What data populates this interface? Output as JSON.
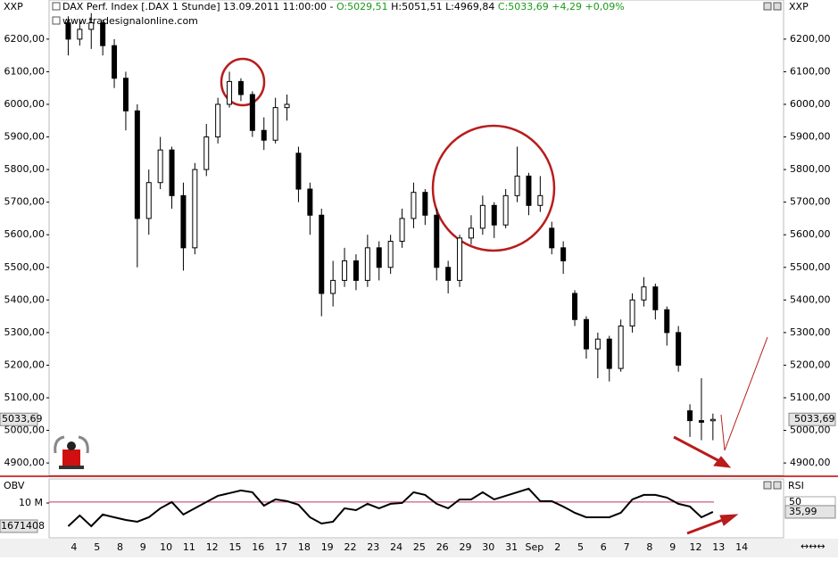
{
  "header": {
    "symbol_left": "XXP",
    "symbol_right": "XXP",
    "title": "DAX Perf. Index [.DAX  1 Stunde] 13.09.2011 11:00:00 -",
    "open_text": "O:5029,51",
    "hl_text": "H:5051,51 L:4969,84",
    "close_text": "C:5033,69 +4,29 +0,09%",
    "watermark": "www.tradesignalonline.com"
  },
  "chart_data": [
    {
      "type": "candlestick",
      "categories": [
        "4",
        null,
        "5",
        null,
        "8",
        null,
        "9",
        null,
        "10",
        null,
        "11",
        null,
        "12",
        null,
        "15",
        null,
        "16",
        null,
        "17",
        null,
        "18",
        null,
        "19",
        null,
        "22",
        null,
        "23",
        null,
        "24",
        null,
        "25",
        null,
        "26",
        null,
        "29",
        null,
        "30",
        null,
        "31",
        null,
        "Sep",
        null,
        "2",
        null,
        "5",
        null,
        "6",
        null,
        "7",
        null,
        "8",
        null,
        "9",
        null,
        "12",
        null,
        "13",
        null,
        "14",
        null
      ],
      "open": [
        6250,
        6200,
        6230,
        6250,
        6180,
        6080,
        5980,
        5650,
        5760,
        5860,
        5720,
        5560,
        5800,
        5900,
        6000,
        6070,
        6030,
        5920,
        5890,
        5990,
        5850,
        5740,
        5660,
        5420,
        5460,
        5520,
        5460,
        5560,
        5500,
        5580,
        5650,
        5730,
        5660,
        5500,
        5460,
        5590,
        5620,
        5690,
        5630,
        5720,
        5780,
        5690,
        5620,
        5560,
        5420,
        5340,
        5250,
        5280,
        5190,
        5320,
        5400,
        5440,
        5370,
        5300,
        5060,
        5030,
        5029.51,
        null,
        null,
        null
      ],
      "high": [
        6270,
        6260,
        6280,
        6260,
        6200,
        6100,
        6000,
        5800,
        5900,
        5870,
        5760,
        5820,
        5940,
        6020,
        6100,
        6080,
        6040,
        5960,
        6020,
        6030,
        5870,
        5760,
        5680,
        5520,
        5560,
        5540,
        5600,
        5580,
        5600,
        5680,
        5760,
        5740,
        5680,
        5520,
        5600,
        5660,
        5720,
        5700,
        5740,
        5870,
        5790,
        5780,
        5640,
        5580,
        5430,
        5350,
        5300,
        5290,
        5340,
        5420,
        5470,
        5450,
        5380,
        5320,
        5080,
        5160,
        5051.51,
        null,
        null,
        null
      ],
      "low": [
        6150,
        6180,
        6170,
        6150,
        6050,
        5920,
        5500,
        5600,
        5740,
        5680,
        5490,
        5540,
        5780,
        5880,
        5990,
        6010,
        5900,
        5860,
        5880,
        5950,
        5700,
        5600,
        5350,
        5380,
        5440,
        5430,
        5440,
        5460,
        5480,
        5560,
        5620,
        5630,
        5460,
        5420,
        5440,
        5570,
        5600,
        5590,
        5620,
        5700,
        5660,
        5670,
        5540,
        5480,
        5320,
        5220,
        5160,
        5150,
        5180,
        5300,
        5380,
        5340,
        5260,
        5180,
        4980,
        4970,
        4969.84,
        null,
        null,
        null
      ],
      "close": [
        6200,
        6230,
        6250,
        6180,
        6080,
        5980,
        5650,
        5760,
        5860,
        5720,
        5560,
        5800,
        5900,
        6000,
        6070,
        6030,
        5920,
        5890,
        5990,
        6000,
        5740,
        5660,
        5420,
        5460,
        5520,
        5460,
        5560,
        5500,
        5580,
        5650,
        5730,
        5660,
        5500,
        5460,
        5590,
        5620,
        5690,
        5630,
        5720,
        5780,
        5690,
        5720,
        5560,
        5520,
        5340,
        5250,
        5280,
        5190,
        5320,
        5400,
        5440,
        5370,
        5300,
        5200,
        5030,
        5025,
        5033.69,
        null,
        null,
        null
      ],
      "ylim": [
        4862,
        6320
      ],
      "yticks": [
        {
          "value": 4900,
          "label": "4900,00"
        },
        {
          "value": 5000,
          "label": "5000,00"
        },
        {
          "value": 5100,
          "label": "5100,00"
        },
        {
          "value": 5200,
          "label": "5200,00"
        },
        {
          "value": 5300,
          "label": "5300,00"
        },
        {
          "value": 5400,
          "label": "5400,00"
        },
        {
          "value": 5500,
          "label": "5500,00"
        },
        {
          "value": 5600,
          "label": "5600,00"
        },
        {
          "value": 5700,
          "label": "5700,00"
        },
        {
          "value": 5800,
          "label": "5800,00"
        },
        {
          "value": 5900,
          "label": "5900,00"
        },
        {
          "value": 6000,
          "label": "6000,00"
        },
        {
          "value": 6100,
          "label": "6100,00"
        },
        {
          "value": 6200,
          "label": "6200,00"
        }
      ],
      "last_value": 5033.69,
      "last_label": "5033,69",
      "color": "#000000"
    },
    {
      "type": "line",
      "ylabel": "OBV",
      "y2label": "RSI",
      "ylim": [
        -2500000,
        18650000
      ],
      "yticks": [
        {
          "value": 10000000,
          "label": "10 M"
        }
      ],
      "last_obv": 1671408,
      "y2lim": [
        -1,
        83
      ],
      "y2ticks": [
        50
      ],
      "grid_color": "#c0306a",
      "color": "#000000",
      "axis": "y2",
      "values": [
        15.6,
        30.9,
        15.6,
        32.2,
        28.3,
        24.5,
        22.0,
        28.3,
        41.1,
        50,
        32.2,
        41.1,
        50,
        58.9,
        62.7,
        66.6,
        64.0,
        44.9,
        53.8,
        51.3,
        46.2,
        28.3,
        19.4,
        22.0,
        41.1,
        38.5,
        47.5,
        41.1,
        47.5,
        48.7,
        64.0,
        60.2,
        47.5,
        41.1,
        53.8,
        53.8,
        64.0,
        53.8,
        58.9,
        64.0,
        69.1,
        51.3,
        51.3,
        43.6,
        34.7,
        28.3,
        28.3,
        28.3,
        34.7,
        53.8,
        60.2,
        60.2,
        56.4,
        47.5,
        43.6,
        28.3,
        35.99,
        null,
        null,
        null
      ],
      "last_value": 35.99,
      "last_label": "35,99"
    }
  ]
}
